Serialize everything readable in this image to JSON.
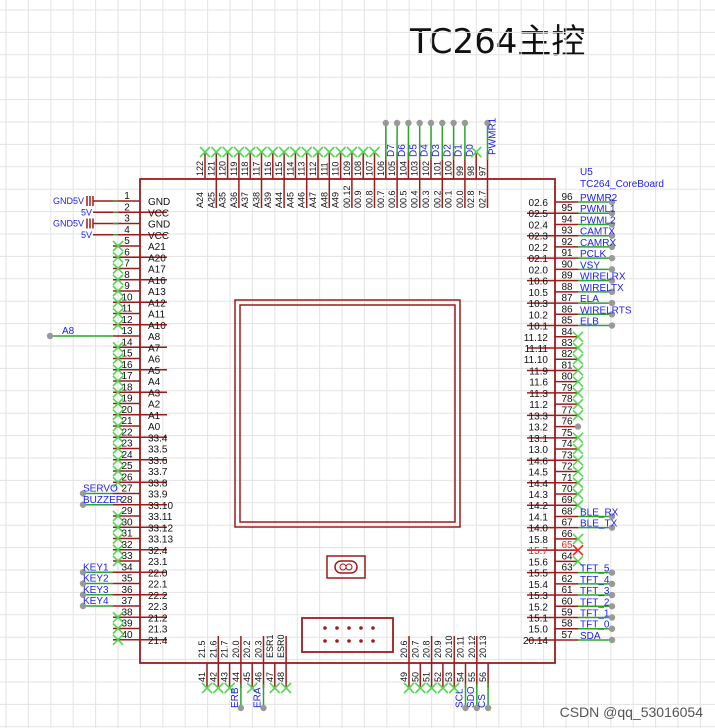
{
  "title": "TC264主控",
  "component": {
    "ref": "U5",
    "name": "TC264_CoreBoard"
  },
  "watermark": "CSDN @qq_53016054",
  "colors": {
    "body": "#9e1b1b",
    "wire": "#2aa52a",
    "noconnect": "#55d655",
    "netlabel": "#1d1df0",
    "error": "#ff2020",
    "junction": "#999999",
    "grid": "#e3e3e3"
  },
  "left_pins": {
    "start": 1,
    "labels": [
      "GND",
      "VCC",
      "GND",
      "VCC",
      "A21",
      "A20",
      "A17",
      "A16",
      "A13",
      "A12",
      "A11",
      "A10",
      "A8",
      "A7",
      "A6",
      "A5",
      "A4",
      "A3",
      "A2",
      "A1",
      "A0",
      "33.4",
      "33.5",
      "33.6",
      "33.7",
      "33.8",
      "33.9",
      "33.10",
      "33.11",
      "33.12",
      "33.13",
      "32.4",
      "23.1",
      "22.0",
      "22.1",
      "22.2",
      "22.3",
      "21.2",
      "21.3",
      "21.4"
    ],
    "nets": {
      "1": "GND5V",
      "2": "5V",
      "3": "GND5V",
      "4": "5V",
      "13": "A8",
      "27": "SERVO",
      "28": "BUZZER",
      "34": "KEY1",
      "35": "KEY2",
      "36": "KEY3",
      "37": "KEY4"
    },
    "no_connect": [
      5,
      6,
      7,
      8,
      9,
      10,
      11,
      12,
      14,
      15,
      16,
      17,
      18,
      19,
      20,
      21,
      22,
      23,
      24,
      25,
      26,
      29,
      30,
      31,
      32,
      33,
      38,
      39,
      40
    ]
  },
  "right_pins": {
    "start": 96,
    "labels": [
      "02.6",
      "02.5",
      "02.4",
      "02.3",
      "02.2",
      "02.1",
      "02.0",
      "10.6",
      "10.5",
      "10.3",
      "10.2",
      "10.1",
      "11.12",
      "11.11",
      "11.10",
      "11.9",
      "11.6",
      "11.3",
      "11.2",
      "13.3",
      "13.2",
      "13.1",
      "13.0",
      "14.6",
      "14.5",
      "14.4",
      "14.3",
      "14.2",
      "14.1",
      "14.0",
      "15.8",
      "15.7",
      "15.6",
      "15.5",
      "15.4",
      "15.3",
      "15.2",
      "15.1",
      "15.0",
      "20.14"
    ],
    "nets": {
      "96": "PWMR2",
      "95": "PWML1",
      "94": "PWML2",
      "93": "CAMTX",
      "92": "CAMRX",
      "91": "PCLK",
      "90": "VSY",
      "89": "WIRELRX",
      "88": "WIRELTX",
      "87": "ELA",
      "86": "WIRELRTS",
      "85": "ELB",
      "68": "BLE_RX",
      "67": "BLE_TX",
      "63": "TFT_5",
      "62": "TFT_4",
      "61": "TFT_3",
      "60": "TFT_2",
      "59": "TFT_1",
      "58": "TFT_0",
      "57": "SDA"
    },
    "no_connect": [
      84,
      83,
      82,
      81,
      80,
      79,
      78,
      77,
      75,
      74,
      73,
      72,
      71,
      70,
      69,
      66,
      64
    ],
    "error_pins": [
      65
    ],
    "junction_only": [
      76
    ]
  },
  "top_pins": {
    "start": 122,
    "labels": [
      "A24",
      "A25",
      "A35",
      "A36",
      "A37",
      "A38",
      "A39",
      "A44",
      "A45",
      "A46",
      "A47",
      "A48",
      "A49",
      "00.12",
      "00.9",
      "00.8",
      "00.7",
      "00.6",
      "00.5",
      "00.4",
      "00.3",
      "00.2",
      "00.1",
      "00.0",
      "02.8",
      "02.7"
    ],
    "nets": {
      "106": "D7",
      "105": "D6",
      "104": "D5",
      "103": "D4",
      "102": "D3",
      "101": "D2",
      "100": "D1",
      "99": "D0",
      "97": "PWMR1"
    },
    "no_connect": [
      122,
      121,
      120,
      119,
      118,
      117,
      116,
      115,
      114,
      113,
      112,
      111,
      110,
      109,
      108,
      107,
      98
    ]
  },
  "bottom_pins": {
    "groups": [
      {
        "start": 41,
        "labels": [
          "21.5",
          "21.6",
          "21.7",
          "20.0",
          "20.2",
          "20.3",
          "ESR1",
          "ESR0"
        ]
      },
      {
        "start": 49,
        "labels": [
          "20.6",
          "20.7",
          "20.8",
          "20.9",
          "20.10",
          "20.11",
          "20.12",
          "20.13"
        ]
      }
    ],
    "nets": {
      "44": "ERB",
      "46": "ERA",
      "54": "SCL",
      "55": "SDO",
      "56": "CS"
    },
    "no_connect": [
      41,
      42,
      43,
      45,
      47,
      48,
      49,
      50,
      51,
      52,
      53
    ]
  }
}
